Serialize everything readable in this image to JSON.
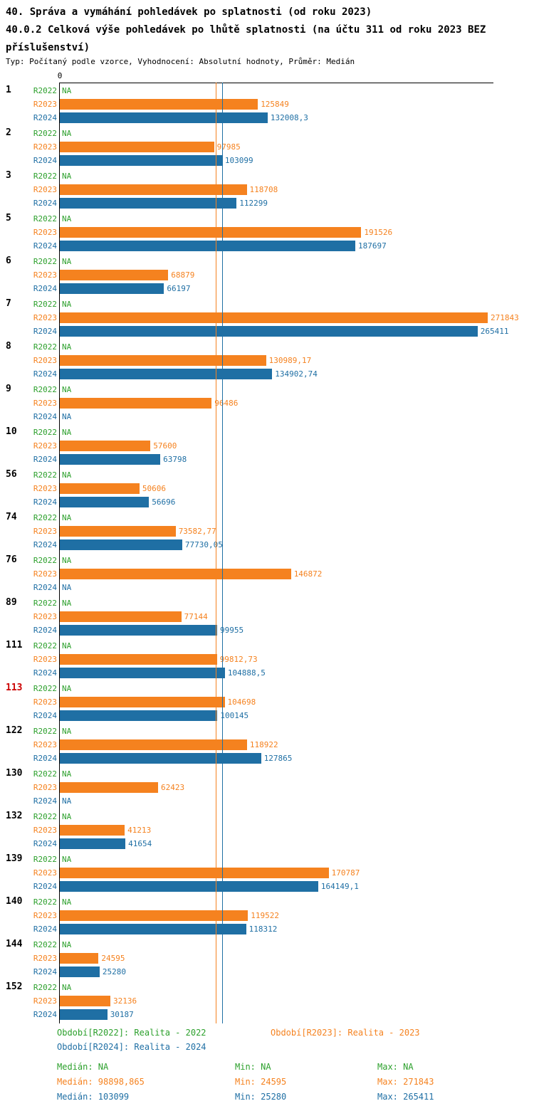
{
  "header": {
    "title_line1": "40. Správa a vymáhání pohledávek po splatnosti (od roku 2023)",
    "title_line2": "40.0.2 Celková výše pohledávek po lhůtě splatnosti (na účtu 311 od roku 2023 BEZ příslušenství)",
    "meta": "Typ: Počítaný podle vzorce, Vyhodnocení: Absolutní hodnoty, Průměr: Medián"
  },
  "chart_data": {
    "type": "bar",
    "orientation": "horizontal",
    "zero_label": "0",
    "xlim": [
      0,
      275000
    ],
    "series": [
      "R2022",
      "R2023",
      "R2024"
    ],
    "series_colors": {
      "R2022": "#2ca02c",
      "R2023": "#f5821f",
      "R2024": "#1f6fa4"
    },
    "highlight_color": "#cc0000",
    "median_lines": [
      {
        "series": "R2023",
        "value": 98898.865,
        "color": "#f5821f"
      },
      {
        "series": "R2024",
        "value": 103099,
        "color": "#1f6fa4"
      }
    ],
    "groups": [
      {
        "id": "1",
        "highlight": false,
        "rows": [
          {
            "series": "R2022",
            "value": null,
            "label": "NA"
          },
          {
            "series": "R2023",
            "value": 125849,
            "label": "125849"
          },
          {
            "series": "R2024",
            "value": 132008.3,
            "label": "132008,3"
          }
        ]
      },
      {
        "id": "2",
        "highlight": false,
        "rows": [
          {
            "series": "R2022",
            "value": null,
            "label": "NA"
          },
          {
            "series": "R2023",
            "value": 97985,
            "label": "97985"
          },
          {
            "series": "R2024",
            "value": 103099,
            "label": "103099"
          }
        ]
      },
      {
        "id": "3",
        "highlight": false,
        "rows": [
          {
            "series": "R2022",
            "value": null,
            "label": "NA"
          },
          {
            "series": "R2023",
            "value": 118708,
            "label": "118708"
          },
          {
            "series": "R2024",
            "value": 112299,
            "label": "112299"
          }
        ]
      },
      {
        "id": "5",
        "highlight": false,
        "rows": [
          {
            "series": "R2022",
            "value": null,
            "label": "NA"
          },
          {
            "series": "R2023",
            "value": 191526,
            "label": "191526"
          },
          {
            "series": "R2024",
            "value": 187697,
            "label": "187697"
          }
        ]
      },
      {
        "id": "6",
        "highlight": false,
        "rows": [
          {
            "series": "R2022",
            "value": null,
            "label": "NA"
          },
          {
            "series": "R2023",
            "value": 68879,
            "label": "68879"
          },
          {
            "series": "R2024",
            "value": 66197,
            "label": "66197"
          }
        ]
      },
      {
        "id": "7",
        "highlight": false,
        "rows": [
          {
            "series": "R2022",
            "value": null,
            "label": "NA"
          },
          {
            "series": "R2023",
            "value": 271843,
            "label": "271843"
          },
          {
            "series": "R2024",
            "value": 265411,
            "label": "265411"
          }
        ]
      },
      {
        "id": "8",
        "highlight": false,
        "rows": [
          {
            "series": "R2022",
            "value": null,
            "label": "NA"
          },
          {
            "series": "R2023",
            "value": 130989.17,
            "label": "130989,17"
          },
          {
            "series": "R2024",
            "value": 134902.74,
            "label": "134902,74"
          }
        ]
      },
      {
        "id": "9",
        "highlight": false,
        "rows": [
          {
            "series": "R2022",
            "value": null,
            "label": "NA"
          },
          {
            "series": "R2023",
            "value": 96486,
            "label": "96486"
          },
          {
            "series": "R2024",
            "value": null,
            "label": "NA"
          }
        ]
      },
      {
        "id": "10",
        "highlight": false,
        "rows": [
          {
            "series": "R2022",
            "value": null,
            "label": "NA"
          },
          {
            "series": "R2023",
            "value": 57600,
            "label": "57600"
          },
          {
            "series": "R2024",
            "value": 63798,
            "label": "63798"
          }
        ]
      },
      {
        "id": "56",
        "highlight": false,
        "rows": [
          {
            "series": "R2022",
            "value": null,
            "label": "NA"
          },
          {
            "series": "R2023",
            "value": 50606,
            "label": "50606"
          },
          {
            "series": "R2024",
            "value": 56696,
            "label": "56696"
          }
        ]
      },
      {
        "id": "74",
        "highlight": false,
        "rows": [
          {
            "series": "R2022",
            "value": null,
            "label": "NA"
          },
          {
            "series": "R2023",
            "value": 73582.77,
            "label": "73582,77"
          },
          {
            "series": "R2024",
            "value": 77730.05,
            "label": "77730,05"
          }
        ]
      },
      {
        "id": "76",
        "highlight": false,
        "rows": [
          {
            "series": "R2022",
            "value": null,
            "label": "NA"
          },
          {
            "series": "R2023",
            "value": 146872,
            "label": "146872"
          },
          {
            "series": "R2024",
            "value": null,
            "label": "NA"
          }
        ]
      },
      {
        "id": "89",
        "highlight": false,
        "rows": [
          {
            "series": "R2022",
            "value": null,
            "label": "NA"
          },
          {
            "series": "R2023",
            "value": 77144,
            "label": "77144"
          },
          {
            "series": "R2024",
            "value": 99955,
            "label": "99955"
          }
        ]
      },
      {
        "id": "111",
        "highlight": false,
        "rows": [
          {
            "series": "R2022",
            "value": null,
            "label": "NA"
          },
          {
            "series": "R2023",
            "value": 99812.73,
            "label": "99812,73"
          },
          {
            "series": "R2024",
            "value": 104888.5,
            "label": "104888,5"
          }
        ]
      },
      {
        "id": "113",
        "highlight": true,
        "rows": [
          {
            "series": "R2022",
            "value": null,
            "label": "NA"
          },
          {
            "series": "R2023",
            "value": 104698,
            "label": "104698"
          },
          {
            "series": "R2024",
            "value": 100145,
            "label": "100145"
          }
        ]
      },
      {
        "id": "122",
        "highlight": false,
        "rows": [
          {
            "series": "R2022",
            "value": null,
            "label": "NA"
          },
          {
            "series": "R2023",
            "value": 118922,
            "label": "118922"
          },
          {
            "series": "R2024",
            "value": 127865,
            "label": "127865"
          }
        ]
      },
      {
        "id": "130",
        "highlight": false,
        "rows": [
          {
            "series": "R2022",
            "value": null,
            "label": "NA"
          },
          {
            "series": "R2023",
            "value": 62423,
            "label": "62423"
          },
          {
            "series": "R2024",
            "value": null,
            "label": "NA"
          }
        ]
      },
      {
        "id": "132",
        "highlight": false,
        "rows": [
          {
            "series": "R2022",
            "value": null,
            "label": "NA"
          },
          {
            "series": "R2023",
            "value": 41213,
            "label": "41213"
          },
          {
            "series": "R2024",
            "value": 41654,
            "label": "41654"
          }
        ]
      },
      {
        "id": "139",
        "highlight": false,
        "rows": [
          {
            "series": "R2022",
            "value": null,
            "label": "NA"
          },
          {
            "series": "R2023",
            "value": 170787,
            "label": "170787"
          },
          {
            "series": "R2024",
            "value": 164149.1,
            "label": "164149,1"
          }
        ]
      },
      {
        "id": "140",
        "highlight": false,
        "rows": [
          {
            "series": "R2022",
            "value": null,
            "label": "NA"
          },
          {
            "series": "R2023",
            "value": 119522,
            "label": "119522"
          },
          {
            "series": "R2024",
            "value": 118312,
            "label": "118312"
          }
        ]
      },
      {
        "id": "144",
        "highlight": false,
        "rows": [
          {
            "series": "R2022",
            "value": null,
            "label": "NA"
          },
          {
            "series": "R2023",
            "value": 24595,
            "label": "24595"
          },
          {
            "series": "R2024",
            "value": 25280,
            "label": "25280"
          }
        ]
      },
      {
        "id": "152",
        "highlight": false,
        "rows": [
          {
            "series": "R2022",
            "value": null,
            "label": "NA"
          },
          {
            "series": "R2023",
            "value": 32136,
            "label": "32136"
          },
          {
            "series": "R2024",
            "value": 30187,
            "label": "30187"
          }
        ]
      }
    ]
  },
  "legend": {
    "items": [
      {
        "label": "Období[R2022]: Realita - 2022",
        "color": "#2ca02c"
      },
      {
        "label": "Období[R2023]: Realita - 2023",
        "color": "#f5821f"
      },
      {
        "label": "Období[R2024]: Realita - 2024",
        "color": "#1f6fa4"
      }
    ]
  },
  "stats": {
    "rows": [
      {
        "color": "#2ca02c",
        "median": "Medián: NA",
        "min": "Min: NA",
        "max": "Max: NA"
      },
      {
        "color": "#f5821f",
        "median": "Medián: 98898,865",
        "min": "Min: 24595",
        "max": "Max: 271843"
      },
      {
        "color": "#1f6fa4",
        "median": "Medián: 103099",
        "min": "Min: 25280",
        "max": "Max: 265411"
      }
    ]
  }
}
